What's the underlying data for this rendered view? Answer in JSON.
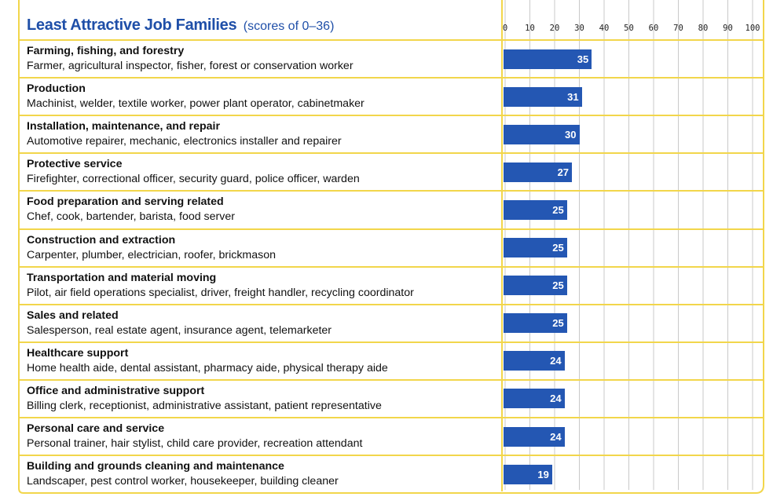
{
  "chart_data": {
    "type": "bar",
    "orientation": "horizontal",
    "title": "Least Attractive Job Families",
    "subtitle": "(scores of 0–36)",
    "xlim": [
      0,
      100
    ],
    "x_ticks": [
      "0",
      "10",
      "20",
      "30",
      "40",
      "50",
      "60",
      "70",
      "80",
      "90",
      "100"
    ],
    "grid": true,
    "categories": [
      {
        "name": "Farming, fishing, and forestry",
        "examples": "Farmer, agricultural inspector, fisher, forest or conservation worker",
        "value": 35
      },
      {
        "name": "Production",
        "examples": "Machinist, welder, textile worker, power plant operator, cabinetmaker",
        "value": 31
      },
      {
        "name": "Installation, maintenance, and repair",
        "examples": "Automotive repairer, mechanic, electronics installer and repairer",
        "value": 30
      },
      {
        "name": "Protective service",
        "examples": "Firefighter, correctional officer, security guard, police officer, warden",
        "value": 27
      },
      {
        "name": "Food preparation and serving related",
        "examples": "Chef, cook, bartender, barista, food server",
        "value": 25
      },
      {
        "name": "Construction and extraction",
        "examples": "Carpenter, plumber, electrician, roofer, brickmason",
        "value": 25
      },
      {
        "name": "Transportation and material moving",
        "examples": "Pilot, air field operations specialist, driver, freight handler, recycling coordinator",
        "value": 25
      },
      {
        "name": "Sales and related",
        "examples": "Salesperson, real estate agent, insurance agent, telemarketer",
        "value": 25
      },
      {
        "name": "Healthcare support",
        "examples": "Home health aide, dental assistant, pharmacy aide, physical therapy aide",
        "value": 24
      },
      {
        "name": "Office and administrative support",
        "examples": "Billing clerk, receptionist, administrative assistant, patient representative",
        "value": 24
      },
      {
        "name": "Personal care and service",
        "examples": "Personal trainer, hair stylist, child care provider, recreation attendant",
        "value": 24
      },
      {
        "name": "Building and grounds cleaning and maintenance",
        "examples": "Landscaper, pest control worker, housekeeper, building cleaner",
        "value": 19
      }
    ],
    "colors": {
      "bar": "#2457b3",
      "title": "#1f4fa8",
      "frame": "#f2d64b",
      "grid": "#c9c9c9"
    }
  }
}
